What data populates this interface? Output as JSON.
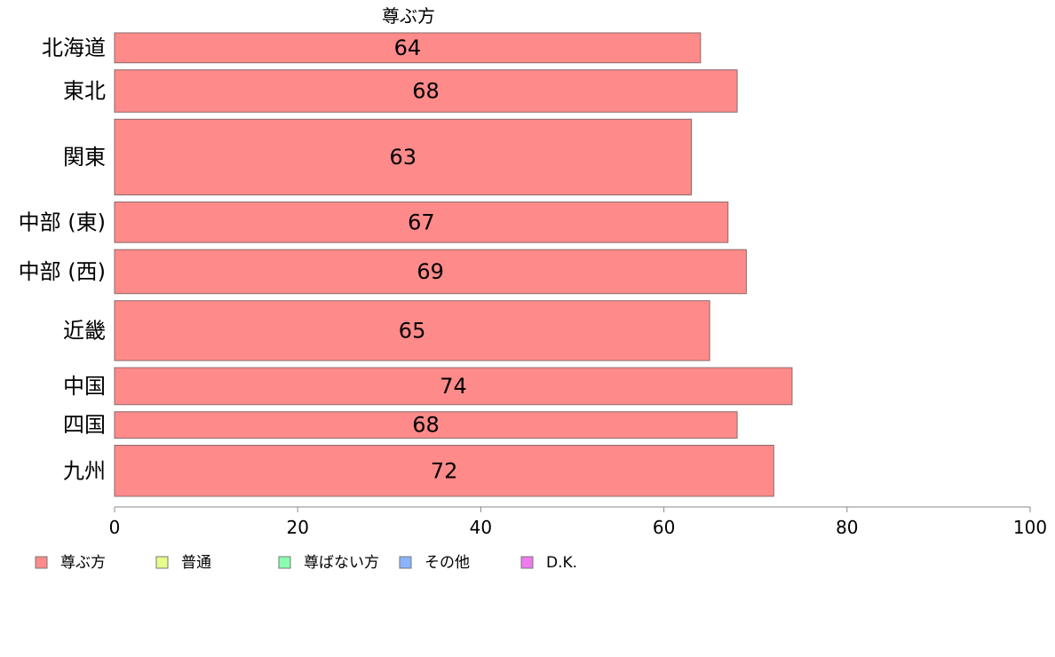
{
  "chart_data": {
    "type": "bar",
    "orientation": "horizontal",
    "title": "尊ぶ方",
    "categories": [
      "北海道",
      "東北",
      "関東",
      "中部 (東)",
      "中部 (西)",
      "近畿",
      "中国",
      "四国",
      "九州"
    ],
    "category_weights": [
      34,
      48,
      86,
      46,
      50,
      68,
      42,
      30,
      58
    ],
    "series": [
      {
        "name": "尊ぶ方",
        "values": [
          64,
          68,
          63,
          67,
          69,
          65,
          74,
          68,
          72
        ],
        "color": "#ff8a8a"
      }
    ],
    "data_labels": [
      "64",
      "68",
      "63",
      "67",
      "69",
      "65",
      "74",
      "68",
      "72"
    ],
    "xlim": [
      0,
      100
    ],
    "xticks": [
      0,
      20,
      40,
      60,
      80,
      100
    ],
    "xtick_labels": [
      "0",
      "20",
      "40",
      "60",
      "80",
      "100"
    ],
    "grid": false,
    "legend": {
      "placement": "bottom-left",
      "entries": [
        {
          "label": "尊ぶ方",
          "color": "#ff8a8a"
        },
        {
          "label": "普通",
          "color": "#e6ff8a"
        },
        {
          "label": "尊ばない方",
          "color": "#8affb0"
        },
        {
          "label": "その他",
          "color": "#8ab4ff"
        },
        {
          "label": "D.K.",
          "color": "#ee7aee"
        }
      ]
    }
  }
}
